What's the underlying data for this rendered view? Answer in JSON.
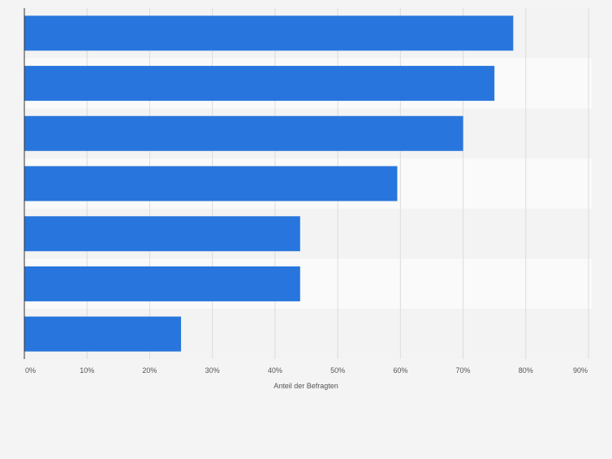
{
  "chart_data": {
    "type": "bar",
    "orientation": "horizontal",
    "categories": [
      "",
      "",
      "",
      "",
      "",
      "",
      ""
    ],
    "values": [
      78,
      75,
      70,
      59.5,
      44,
      44,
      25
    ],
    "title": "",
    "xlabel": "Anteil der Befragten",
    "ylabel": "",
    "xlim": [
      0,
      90
    ],
    "xticks": [
      "0%",
      "10%",
      "20%",
      "30%",
      "40%",
      "50%",
      "60%",
      "70%",
      "80%",
      "90%"
    ],
    "grid": true,
    "legend": "none",
    "colors": {
      "bar": "#2876dd",
      "background": "#f4f4f4",
      "band_light": "#fafafa",
      "band_dark": "#f3f3f3",
      "grid": "#dcdcdc",
      "axis": "#333333",
      "tick_text": "#555555"
    }
  }
}
